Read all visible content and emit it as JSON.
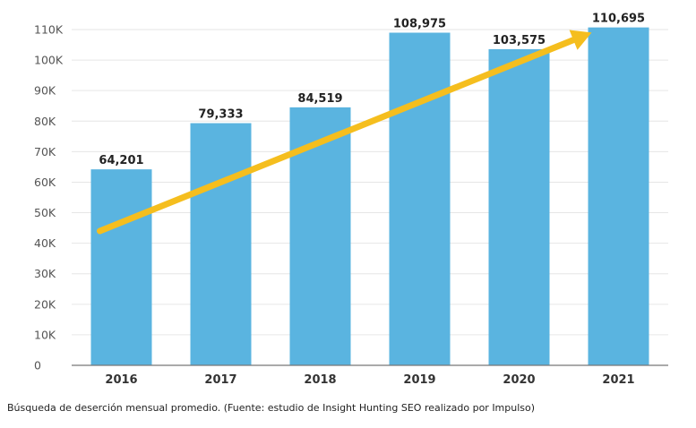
{
  "chart_data": {
    "type": "bar",
    "categories": [
      "2016",
      "2017",
      "2018",
      "2019",
      "2020",
      "2021"
    ],
    "values": [
      64201,
      79333,
      84519,
      108975,
      103575,
      110695
    ],
    "data_labels": [
      "64,201",
      "79,333",
      "84,519",
      "108,975",
      "103,575",
      "110,695"
    ],
    "y_ticks": [
      0,
      10000,
      20000,
      30000,
      40000,
      50000,
      60000,
      70000,
      80000,
      90000,
      100000,
      110000
    ],
    "y_tick_labels": [
      "0",
      "10K",
      "20K",
      "30K",
      "40K",
      "50K",
      "60K",
      "70K",
      "80K",
      "90K",
      "100K",
      "110K"
    ],
    "ylim": [
      0,
      110000
    ],
    "grid": true,
    "legend": "none",
    "trend_arrow": {
      "from": {
        "category": "2016",
        "value": 44000
      },
      "to": {
        "category": "2021",
        "value": 109000
      }
    },
    "colors": {
      "bar": "#5ab4e0",
      "grid": "#e6e6e6",
      "arrow": "#f5be1e",
      "axis": "#777777"
    }
  },
  "caption": "Búsqueda de deserción mensual promedio. (Fuente: estudio de Insight Hunting SEO realizado por Impulso)"
}
